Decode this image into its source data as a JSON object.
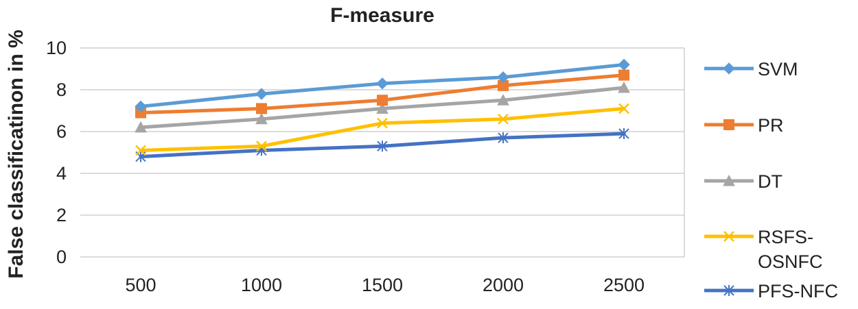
{
  "chart_data": {
    "type": "line",
    "title": "F-measure",
    "xlabel": "",
    "ylabel": "False classificatinon in %",
    "categories": [
      "500",
      "1000",
      "1500",
      "2000",
      "2500"
    ],
    "ylim": [
      0,
      10
    ],
    "yticks": [
      "0",
      "2",
      "4",
      "6",
      "8",
      "10"
    ],
    "grid": true,
    "legend_position": "right",
    "series": [
      {
        "name": "SVM",
        "values": [
          7.2,
          7.8,
          8.3,
          8.6,
          9.2
        ],
        "color": "#5b9bd5",
        "marker": "diamond-icon",
        "legend_lines": [
          "SVM"
        ]
      },
      {
        "name": "PR",
        "values": [
          6.9,
          7.1,
          7.5,
          8.2,
          8.7
        ],
        "color": "#ed7d31",
        "marker": "square-icon",
        "legend_lines": [
          "PR"
        ]
      },
      {
        "name": "DT",
        "values": [
          6.2,
          6.6,
          7.1,
          7.5,
          8.1
        ],
        "color": "#a5a5a5",
        "marker": "triangle-icon",
        "legend_lines": [
          "DT"
        ]
      },
      {
        "name": "RSFS-OSNFC",
        "values": [
          5.1,
          5.3,
          6.4,
          6.6,
          7.1
        ],
        "color": "#ffc000",
        "marker": "x-icon",
        "legend_lines": [
          "RSFS-",
          "OSNFC"
        ]
      },
      {
        "name": "PFS-NFC",
        "values": [
          4.8,
          5.1,
          5.3,
          5.7,
          5.9
        ],
        "color": "#4472c4",
        "marker": "asterisk-icon",
        "legend_lines": [
          "PFS-NFC"
        ]
      }
    ]
  }
}
